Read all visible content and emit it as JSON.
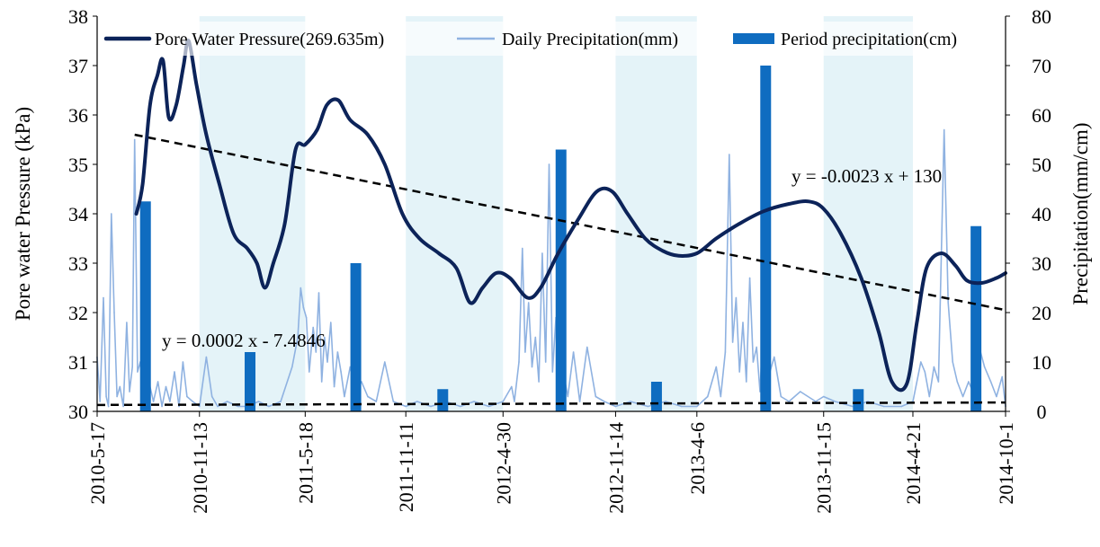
{
  "chart_data": {
    "type": "line",
    "axes": {
      "ylabel_left": "Pore water Pressure (kPa)",
      "ylabel_right": "Precipitation(mm/cm)",
      "y_left_range": [
        30,
        38
      ],
      "y_right_range": [
        0,
        80
      ],
      "y_left_ticks": [
        "30",
        "31",
        "32",
        "33",
        "34",
        "35",
        "36",
        "37",
        "38"
      ],
      "y_right_ticks": [
        "0",
        "10",
        "20",
        "30",
        "40",
        "50",
        "60",
        "70",
        "80"
      ],
      "x_range": [
        "2010-05-17",
        "2014-10-01"
      ],
      "x_ticks": [
        {
          "label": "2010-5-17",
          "date": "2010-05-17"
        },
        {
          "label": "2010-11-13",
          "date": "2010-11-13"
        },
        {
          "label": "2011-5-18",
          "date": "2011-05-18"
        },
        {
          "label": "2011-11-11",
          "date": "2011-11-11"
        },
        {
          "label": "2012-4-30",
          "date": "2012-04-30"
        },
        {
          "label": "2012-11-14",
          "date": "2012-11-14"
        },
        {
          "label": "2013-4-6",
          "date": "2013-04-06"
        },
        {
          "label": "2013-11-15",
          "date": "2013-11-15"
        },
        {
          "label": "2014-4-21",
          "date": "2014-04-21"
        },
        {
          "label": "2014-10-1",
          "date": "2014-10-01"
        }
      ],
      "grid": false
    },
    "shaded_periods": [
      [
        "2010-11-13",
        "2011-05-18"
      ],
      [
        "2011-11-11",
        "2012-04-30"
      ],
      [
        "2012-11-14",
        "2013-04-06"
      ],
      [
        "2013-11-15",
        "2014-04-21"
      ]
    ],
    "legend": {
      "placement": "top",
      "entries": [
        {
          "label": "Pore Water Pressure(269.635m)",
          "color": "#0c2359",
          "style": "thick-line"
        },
        {
          "label": "Daily Precipitation(mm)",
          "color": "#8fb2e1",
          "style": "thin-line"
        },
        {
          "label": "Period precipitation(cm)",
          "color": "#0f6cc0",
          "style": "bar"
        }
      ]
    },
    "series": [
      {
        "name": "Pore Water Pressure(269.635m)",
        "axis": "left",
        "color": "#0c2359",
        "points": [
          [
            "2010-07-25",
            34.0
          ],
          [
            "2010-08-05",
            34.6
          ],
          [
            "2010-08-18",
            36.2
          ],
          [
            "2010-08-31",
            36.8
          ],
          [
            "2010-09-10",
            37.1
          ],
          [
            "2010-09-20",
            35.95
          ],
          [
            "2010-10-03",
            36.2
          ],
          [
            "2010-10-16",
            37.0
          ],
          [
            "2010-10-25",
            37.5
          ],
          [
            "2010-11-08",
            36.6
          ],
          [
            "2010-11-25",
            35.6
          ],
          [
            "2010-12-18",
            34.6
          ],
          [
            "2011-01-12",
            33.6
          ],
          [
            "2011-02-05",
            33.3
          ],
          [
            "2011-02-22",
            33.0
          ],
          [
            "2011-03-08",
            32.5
          ],
          [
            "2011-03-23",
            33.0
          ],
          [
            "2011-04-12",
            33.8
          ],
          [
            "2011-05-01",
            35.3
          ],
          [
            "2011-05-18",
            35.4
          ],
          [
            "2011-06-08",
            35.7
          ],
          [
            "2011-06-25",
            36.2
          ],
          [
            "2011-07-15",
            36.3
          ],
          [
            "2011-08-05",
            35.9
          ],
          [
            "2011-09-05",
            35.6
          ],
          [
            "2011-10-05",
            35.0
          ],
          [
            "2011-11-05",
            34.0
          ],
          [
            "2011-12-05",
            33.5
          ],
          [
            "2012-01-08",
            33.2
          ],
          [
            "2012-02-08",
            32.9
          ],
          [
            "2012-03-03",
            32.2
          ],
          [
            "2012-03-25",
            32.5
          ],
          [
            "2012-04-18",
            32.8
          ],
          [
            "2012-05-12",
            32.7
          ],
          [
            "2012-06-12",
            32.3
          ],
          [
            "2012-07-05",
            32.5
          ],
          [
            "2012-08-05",
            33.2
          ],
          [
            "2012-09-10",
            33.9
          ],
          [
            "2012-10-12",
            34.45
          ],
          [
            "2012-11-08",
            34.45
          ],
          [
            "2012-12-05",
            34.0
          ],
          [
            "2013-01-05",
            33.5
          ],
          [
            "2013-02-05",
            33.25
          ],
          [
            "2013-03-05",
            33.15
          ],
          [
            "2013-04-06",
            33.2
          ],
          [
            "2013-05-10",
            33.5
          ],
          [
            "2013-06-20",
            33.8
          ],
          [
            "2013-08-01",
            34.05
          ],
          [
            "2013-09-15",
            34.2
          ],
          [
            "2013-10-20",
            34.25
          ],
          [
            "2013-11-15",
            34.1
          ],
          [
            "2013-12-15",
            33.6
          ],
          [
            "2014-01-20",
            32.7
          ],
          [
            "2014-02-20",
            31.6
          ],
          [
            "2014-03-15",
            30.6
          ],
          [
            "2014-04-10",
            30.55
          ],
          [
            "2014-04-28",
            31.8
          ],
          [
            "2014-05-15",
            32.9
          ],
          [
            "2014-06-10",
            33.2
          ],
          [
            "2014-07-05",
            32.95
          ],
          [
            "2014-07-25",
            32.65
          ],
          [
            "2014-08-20",
            32.6
          ],
          [
            "2014-09-15",
            32.7
          ],
          [
            "2014-10-01",
            32.8
          ]
        ]
      },
      {
        "name": "Daily Precipitation(mm)",
        "axis": "right",
        "color": "#8fb2e1",
        "points": [
          [
            "2010-05-17",
            11
          ],
          [
            "2010-05-22",
            2
          ],
          [
            "2010-05-28",
            23
          ],
          [
            "2010-06-02",
            3
          ],
          [
            "2010-06-06",
            1
          ],
          [
            "2010-06-11",
            40
          ],
          [
            "2010-06-16",
            20
          ],
          [
            "2010-06-21",
            3
          ],
          [
            "2010-06-26",
            5
          ],
          [
            "2010-07-02",
            1
          ],
          [
            "2010-07-08",
            18
          ],
          [
            "2010-07-13",
            4
          ],
          [
            "2010-07-18",
            9
          ],
          [
            "2010-07-22",
            55
          ],
          [
            "2010-07-27",
            8
          ],
          [
            "2010-08-01",
            10
          ],
          [
            "2010-08-07",
            3
          ],
          [
            "2010-08-12",
            17
          ],
          [
            "2010-08-18",
            5
          ],
          [
            "2010-08-24",
            2
          ],
          [
            "2010-09-01",
            6
          ],
          [
            "2010-09-08",
            1
          ],
          [
            "2010-09-15",
            5
          ],
          [
            "2010-09-22",
            2
          ],
          [
            "2010-09-30",
            8
          ],
          [
            "2010-10-08",
            1
          ],
          [
            "2010-10-15",
            10
          ],
          [
            "2010-10-22",
            3
          ],
          [
            "2010-11-01",
            2
          ],
          [
            "2010-11-13",
            1
          ],
          [
            "2010-11-25",
            11
          ],
          [
            "2010-12-05",
            3
          ],
          [
            "2010-12-15",
            1
          ],
          [
            "2011-01-01",
            2
          ],
          [
            "2011-01-20",
            1
          ],
          [
            "2011-02-05",
            1
          ],
          [
            "2011-02-25",
            2
          ],
          [
            "2011-03-15",
            1
          ],
          [
            "2011-04-05",
            2
          ],
          [
            "2011-04-25",
            9
          ],
          [
            "2011-05-05",
            15
          ],
          [
            "2011-05-10",
            25
          ],
          [
            "2011-05-15",
            21
          ],
          [
            "2011-05-20",
            19
          ],
          [
            "2011-05-25",
            8
          ],
          [
            "2011-06-01",
            17
          ],
          [
            "2011-06-06",
            12
          ],
          [
            "2011-06-11",
            24
          ],
          [
            "2011-06-16",
            6
          ],
          [
            "2011-06-21",
            15
          ],
          [
            "2011-06-26",
            10
          ],
          [
            "2011-07-02",
            18
          ],
          [
            "2011-07-08",
            5
          ],
          [
            "2011-07-14",
            12
          ],
          [
            "2011-07-20",
            8
          ],
          [
            "2011-07-26",
            3
          ],
          [
            "2011-08-05",
            9
          ],
          [
            "2011-08-15",
            4
          ],
          [
            "2011-08-25",
            6
          ],
          [
            "2011-09-05",
            3
          ],
          [
            "2011-09-20",
            2
          ],
          [
            "2011-10-05",
            10
          ],
          [
            "2011-10-20",
            2
          ],
          [
            "2011-11-11",
            1
          ],
          [
            "2011-12-01",
            2
          ],
          [
            "2011-12-25",
            1
          ],
          [
            "2012-01-20",
            2
          ],
          [
            "2012-02-15",
            1
          ],
          [
            "2012-03-10",
            2
          ],
          [
            "2012-04-05",
            1
          ],
          [
            "2012-04-30",
            2
          ],
          [
            "2012-05-15",
            5
          ],
          [
            "2012-05-20",
            2
          ],
          [
            "2012-05-28",
            10
          ],
          [
            "2012-06-03",
            33
          ],
          [
            "2012-06-08",
            12
          ],
          [
            "2012-06-14",
            22
          ],
          [
            "2012-06-20",
            9
          ],
          [
            "2012-06-26",
            15
          ],
          [
            "2012-07-02",
            6
          ],
          [
            "2012-07-08",
            32
          ],
          [
            "2012-07-14",
            10
          ],
          [
            "2012-07-20",
            50
          ],
          [
            "2012-07-26",
            8
          ],
          [
            "2012-08-01",
            19
          ],
          [
            "2012-08-07",
            5
          ],
          [
            "2012-08-14",
            8
          ],
          [
            "2012-08-22",
            3
          ],
          [
            "2012-09-01",
            12
          ],
          [
            "2012-09-12",
            2
          ],
          [
            "2012-09-25",
            13
          ],
          [
            "2012-10-10",
            3
          ],
          [
            "2012-10-25",
            2
          ],
          [
            "2012-11-14",
            1
          ],
          [
            "2012-12-10",
            2
          ],
          [
            "2013-01-10",
            1
          ],
          [
            "2013-02-10",
            2
          ],
          [
            "2013-03-10",
            1
          ],
          [
            "2013-04-06",
            1
          ],
          [
            "2013-04-25",
            3
          ],
          [
            "2013-05-10",
            9
          ],
          [
            "2013-05-18",
            3
          ],
          [
            "2013-05-26",
            12
          ],
          [
            "2013-06-02",
            52
          ],
          [
            "2013-06-08",
            14
          ],
          [
            "2013-06-14",
            23
          ],
          [
            "2013-06-20",
            8
          ],
          [
            "2013-06-26",
            18
          ],
          [
            "2013-07-02",
            6
          ],
          [
            "2013-07-08",
            27
          ],
          [
            "2013-07-14",
            10
          ],
          [
            "2013-07-20",
            13
          ],
          [
            "2013-07-26",
            4
          ],
          [
            "2013-08-02",
            21
          ],
          [
            "2013-08-10",
            7
          ],
          [
            "2013-08-20",
            11
          ],
          [
            "2013-09-01",
            3
          ],
          [
            "2013-09-15",
            2
          ],
          [
            "2013-10-05",
            4
          ],
          [
            "2013-11-01",
            2
          ],
          [
            "2013-11-15",
            3
          ],
          [
            "2013-12-05",
            2
          ],
          [
            "2014-01-05",
            1
          ],
          [
            "2014-02-01",
            2
          ],
          [
            "2014-03-01",
            1
          ],
          [
            "2014-04-01",
            1
          ],
          [
            "2014-04-21",
            2
          ],
          [
            "2014-05-05",
            10
          ],
          [
            "2014-05-12",
            8
          ],
          [
            "2014-05-20",
            3
          ],
          [
            "2014-05-28",
            9
          ],
          [
            "2014-06-05",
            6
          ],
          [
            "2014-06-15",
            57
          ],
          [
            "2014-06-22",
            22
          ],
          [
            "2014-06-30",
            10
          ],
          [
            "2014-07-08",
            6
          ],
          [
            "2014-07-18",
            3
          ],
          [
            "2014-07-28",
            6
          ],
          [
            "2014-08-08",
            3
          ],
          [
            "2014-08-18",
            12
          ],
          [
            "2014-08-25",
            9
          ],
          [
            "2014-09-05",
            6
          ],
          [
            "2014-09-15",
            3
          ],
          [
            "2014-09-25",
            7
          ],
          [
            "2014-10-01",
            1
          ]
        ]
      }
    ],
    "bars": {
      "name": "Period precipitation(cm)",
      "axis": "right",
      "color": "#0f6cc0",
      "points": [
        [
          "2010-08-10",
          42.5
        ],
        [
          "2011-02-10",
          12
        ],
        [
          "2011-08-15",
          30
        ],
        [
          "2012-01-15",
          4.5
        ],
        [
          "2012-08-10",
          53
        ],
        [
          "2013-01-25",
          6
        ],
        [
          "2013-08-05",
          70
        ],
        [
          "2014-01-15",
          4.5
        ],
        [
          "2014-08-10",
          37.5
        ]
      ]
    },
    "trendlines": [
      {
        "equation": "y = -0.0023 x + 130",
        "axis": "left",
        "color": "#000000",
        "from": [
          "2010-07-22",
          35.6
        ],
        "to": [
          "2014-10-01",
          32.05
        ]
      },
      {
        "equation": "y = 0.0002 x - 7.4846",
        "axis": "right",
        "color": "#000000",
        "from": [
          "2010-05-17",
          1.3
        ],
        "to": [
          "2014-10-01",
          1.8
        ]
      }
    ]
  }
}
